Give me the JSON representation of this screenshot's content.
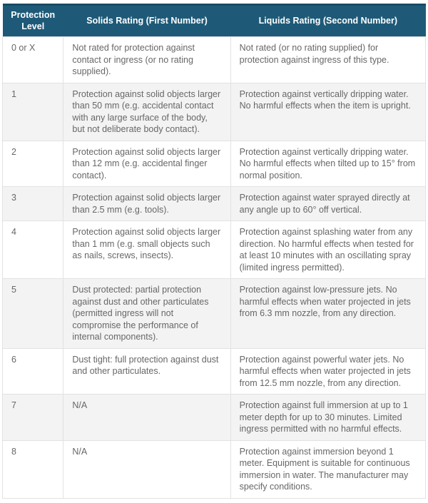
{
  "table": {
    "name": "ip-rating-reference-table",
    "colors": {
      "header_background": "#1e5a78",
      "header_top_edge": "#174b65",
      "header_text": "#ffffff",
      "body_text": "#676767",
      "stripe_background": "#f3f3f3",
      "cell_border": "#e2e2e2"
    },
    "headers": {
      "level": "Protection Level",
      "solids": "Solids Rating (First Number)",
      "liquids": "Liquids Rating (Second Number)"
    },
    "rows": [
      {
        "level": "0 or X",
        "solids": "Not rated for protection against contact or ingress (or no rating supplied).",
        "liquids": "Not rated (or no rating supplied) for protection against ingress of this type."
      },
      {
        "level": "1",
        "solids": "Protection against solid objects larger than 50 mm (e.g. accidental contact with any large surface of the body, but not deliberate body contact).",
        "liquids": "Protection against vertically dripping water. No harmful effects when the item is upright."
      },
      {
        "level": "2",
        "solids": "Protection against solid objects larger than 12 mm (e.g. accidental finger contact).",
        "liquids": "Protection against vertically dripping water. No harmful effects when tilted up to 15° from normal position."
      },
      {
        "level": "3",
        "solids": "Protection against solid objects larger than 2.5 mm (e.g. tools).",
        "liquids": "Protection against water sprayed directly at any angle up to 60° off vertical."
      },
      {
        "level": "4",
        "solids": "Protection against solid objects larger than 1 mm (e.g. small objects such as nails, screws, insects).",
        "liquids": "Protection against splashing water from any direction. No harmful effects when tested for at least 10 minutes with an oscillating spray (limited ingress permitted)."
      },
      {
        "level": "5",
        "solids": "Dust protected: partial protection against dust and other particulates (permitted ingress will not compromise the performance of internal components).",
        "liquids": "Protection against low-pressure jets. No harmful effects when water projected in jets from 6.3 mm nozzle, from any direction."
      },
      {
        "level": "6",
        "solids": "Dust tight: full protection against dust and other particulates.",
        "liquids": "Protection against powerful water jets. No harmful effects when water projected in jets from 12.5 mm nozzle, from any direction."
      },
      {
        "level": "7",
        "solids": "N/A",
        "liquids": "Protection against full immersion at up to 1 meter depth for up to 30 minutes. Limited ingress permitted with no harmful effects."
      },
      {
        "level": "8",
        "solids": "N/A",
        "liquids": "Protection against immersion beyond 1 meter. Equipment is suitable for continuous immersion in water. The manufacturer may specify conditions."
      }
    ]
  }
}
